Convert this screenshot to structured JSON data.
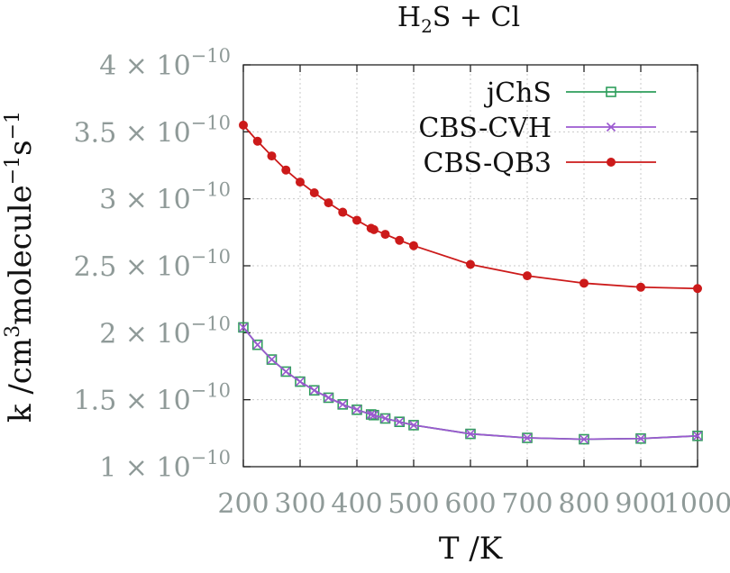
{
  "chart_data": {
    "type": "line",
    "title": "H2S + Cl",
    "title_parts": {
      "base": "H",
      "sub": "2",
      "rest": "S + Cl"
    },
    "xlabel": "T /K",
    "ylabel": "k /cm3molecule−1s−1",
    "ylabel_parts": {
      "a": "k /cm",
      "sup1": "3",
      "b": "molecule",
      "sup2": "−1",
      "c": "s",
      "sup3": "−1"
    },
    "xlim": [
      200,
      1000
    ],
    "ylim": [
      1e-10,
      4e-10
    ],
    "x_ticks": [
      200,
      300,
      400,
      500,
      600,
      700,
      800,
      900,
      1000
    ],
    "x_tick_labels": [
      "200",
      "300",
      "400",
      "500",
      "600",
      "700",
      "800",
      "900",
      "1000"
    ],
    "y_ticks": [
      1e-10,
      1.5e-10,
      2e-10,
      2.5e-10,
      3e-10,
      3.5e-10,
      4e-10
    ],
    "y_tick_labels": [
      {
        "mant": "1",
        "exp": "−10"
      },
      {
        "mant": "1.5",
        "exp": "−10"
      },
      {
        "mant": "2",
        "exp": "−10"
      },
      {
        "mant": "2.5",
        "exp": "−10"
      },
      {
        "mant": "3",
        "exp": "−10"
      },
      {
        "mant": "3.5",
        "exp": "−10"
      },
      {
        "mant": "4",
        "exp": "−10"
      }
    ],
    "grid": true,
    "legend_position": "top-right",
    "x": [
      200,
      225,
      250,
      275,
      300,
      325,
      350,
      375,
      400,
      425,
      430,
      450,
      475,
      500,
      600,
      700,
      800,
      900,
      1000
    ],
    "series": [
      {
        "name": "jChS",
        "marker": "open-square",
        "color": "#2e9e5b",
        "values": [
          2.04e-10,
          1.91e-10,
          1.8e-10,
          1.71e-10,
          1.635e-10,
          1.57e-10,
          1.515e-10,
          1.465e-10,
          1.425e-10,
          1.39e-10,
          1.385e-10,
          1.36e-10,
          1.335e-10,
          1.31e-10,
          1.245e-10,
          1.215e-10,
          1.205e-10,
          1.21e-10,
          1.23e-10
        ]
      },
      {
        "name": "CBS-CVH",
        "marker": "cross",
        "color": "#9b59d0",
        "values": [
          2.04e-10,
          1.91e-10,
          1.8e-10,
          1.71e-10,
          1.635e-10,
          1.57e-10,
          1.515e-10,
          1.465e-10,
          1.425e-10,
          1.39e-10,
          1.385e-10,
          1.36e-10,
          1.335e-10,
          1.31e-10,
          1.245e-10,
          1.215e-10,
          1.205e-10,
          1.21e-10,
          1.23e-10
        ]
      },
      {
        "name": "CBS-QB3",
        "marker": "filled-circle",
        "color": "#cc1a1a",
        "values": [
          3.55e-10,
          3.43e-10,
          3.32e-10,
          3.215e-10,
          3.125e-10,
          3.045e-10,
          2.97e-10,
          2.9e-10,
          2.84e-10,
          2.78e-10,
          2.77e-10,
          2.735e-10,
          2.69e-10,
          2.65e-10,
          2.51e-10,
          2.425e-10,
          2.37e-10,
          2.34e-10,
          2.33e-10
        ]
      }
    ]
  }
}
